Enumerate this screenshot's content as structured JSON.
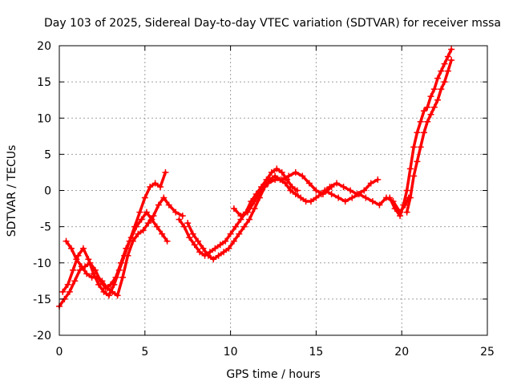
{
  "chart_data": {
    "type": "scatter",
    "title": "Day 103 of 2025, Sidereal Day-to-day VTEC variation (SDTVAR) for receiver mssa",
    "xlabel": "GPS time / hours",
    "ylabel": "SDTVAR / TECUs",
    "xlim": [
      0,
      25
    ],
    "ylim": [
      -20,
      20
    ],
    "xticks": [
      "0",
      "5",
      "10",
      "15",
      "20",
      "25"
    ],
    "yticks": [
      "-20",
      "-15",
      "-10",
      "-5",
      "0",
      "5",
      "10",
      "15",
      "20"
    ],
    "grid": true,
    "marker": "+",
    "color": "#ff0000",
    "series": [
      {
        "name": "trace-1",
        "x": [
          0.0,
          0.3,
          0.6,
          0.9,
          1.2,
          1.5,
          1.8,
          2.1,
          2.4,
          2.7,
          3.0,
          3.3,
          3.6,
          3.9,
          4.2,
          4.5,
          4.8,
          5.1,
          5.4,
          5.7,
          6.0,
          6.3
        ],
        "y": [
          -16,
          -15,
          -14,
          -12.5,
          -11,
          -10.5,
          -10,
          -11,
          -12.5,
          -13.5,
          -13,
          -12,
          -10,
          -8,
          -6.5,
          -5,
          -4,
          -3,
          -4,
          -5,
          -6,
          -7
        ]
      },
      {
        "name": "trace-2",
        "x": [
          0.2,
          0.5,
          0.8,
          1.1,
          1.4,
          1.7,
          2.0,
          2.3,
          2.6,
          2.9,
          3.2,
          3.5,
          3.8,
          4.1,
          4.4,
          4.7,
          5.0,
          5.3,
          5.6,
          5.9,
          6.2
        ],
        "y": [
          -14,
          -13,
          -11,
          -9,
          -8,
          -9.5,
          -11.5,
          -13,
          -14,
          -14.5,
          -13,
          -11,
          -9,
          -7,
          -5,
          -3,
          -1,
          0.5,
          1,
          0.5,
          2.5
        ]
      },
      {
        "name": "trace-3",
        "x": [
          0.4,
          0.7,
          1.0,
          1.3,
          1.6,
          1.9,
          2.2,
          2.5,
          2.8,
          3.1,
          3.4,
          3.7,
          4.0,
          4.3,
          4.6,
          4.9,
          5.2,
          5.5,
          5.8,
          6.1,
          6.4,
          6.8,
          7.2
        ],
        "y": [
          -7,
          -8,
          -9.5,
          -10.5,
          -11.5,
          -12,
          -12,
          -12.5,
          -13.5,
          -14,
          -14.5,
          -12,
          -9,
          -7,
          -6,
          -5.5,
          -4.5,
          -3.5,
          -2,
          -1,
          -2,
          -3,
          -3.5
        ]
      },
      {
        "name": "trace-4",
        "x": [
          7.0,
          7.3,
          7.6,
          7.9,
          8.2,
          8.5,
          8.8,
          9.1,
          9.4,
          9.7,
          10.0,
          10.3,
          10.6,
          10.9,
          11.2,
          11.5,
          11.8,
          12.1,
          12.4,
          12.7,
          13.0,
          13.3,
          13.6,
          13.9
        ],
        "y": [
          -4,
          -5,
          -6.5,
          -7.5,
          -8.5,
          -9,
          -8.5,
          -8,
          -7.5,
          -7,
          -6,
          -5,
          -4,
          -3,
          -1.5,
          -0.5,
          0.5,
          1.5,
          2.5,
          3,
          2.5,
          1.5,
          0.5,
          0
        ]
      },
      {
        "name": "trace-5",
        "x": [
          7.5,
          7.8,
          8.1,
          8.4,
          8.7,
          9.0,
          9.3,
          9.6,
          9.9,
          10.2,
          10.5,
          10.8,
          11.1,
          11.4,
          11.7,
          12.0,
          12.3,
          12.6,
          12.9,
          13.2,
          13.5,
          13.8,
          14.1,
          14.4,
          14.7,
          15.0,
          15.3,
          15.6,
          15.9
        ],
        "y": [
          -4.5,
          -6,
          -7,
          -8,
          -9,
          -9.5,
          -9,
          -8.5,
          -8,
          -7,
          -6,
          -5,
          -4,
          -2.5,
          -1,
          0.5,
          1.5,
          2,
          1.5,
          1,
          0,
          -0.5,
          -1,
          -1.5,
          -1.5,
          -1,
          -0.5,
          0,
          0.5
        ]
      },
      {
        "name": "trace-6",
        "x": [
          10.2,
          10.6,
          11.0,
          11.4,
          11.8,
          12.2,
          12.6,
          13.0,
          13.4,
          13.8,
          14.2,
          14.6,
          15.0,
          15.4,
          15.8,
          16.2,
          16.6,
          17.0,
          17.4,
          17.8,
          18.2,
          18.6
        ],
        "y": [
          -2.5,
          -3.5,
          -3,
          -1.5,
          0,
          1,
          1.5,
          1.5,
          2,
          2.5,
          2,
          1,
          0,
          -0.5,
          0.5,
          1,
          0.5,
          0,
          -0.5,
          0,
          1,
          1.5
        ]
      },
      {
        "name": "trace-7",
        "x": [
          15.5,
          15.9,
          16.3,
          16.7,
          17.1,
          17.5,
          17.9,
          18.3,
          18.7,
          19.1,
          19.5,
          19.9,
          20.2,
          20.4
        ],
        "y": [
          0,
          -0.5,
          -1,
          -1.5,
          -1,
          -0.5,
          -1,
          -1.5,
          -2,
          -1,
          -1.5,
          -3,
          -2,
          -1
        ]
      },
      {
        "name": "trace-8",
        "x": [
          19.3,
          19.6,
          19.9,
          20.1,
          20.3,
          20.5,
          20.7,
          20.9,
          21.1,
          21.3,
          21.5,
          21.7,
          21.9,
          22.1,
          22.3,
          22.5,
          22.7,
          22.9
        ],
        "y": [
          -1,
          -2.5,
          -3.5,
          -2,
          0,
          3,
          6,
          8,
          9.5,
          11,
          11.5,
          13,
          14,
          15.5,
          16.5,
          17.5,
          18.5,
          19.5
        ]
      },
      {
        "name": "trace-9",
        "x": [
          20.3,
          20.5,
          20.7,
          20.9,
          21.1,
          21.3,
          21.5,
          21.7,
          21.9,
          22.1,
          22.3,
          22.5,
          22.7,
          22.9
        ],
        "y": [
          -3,
          -1,
          2,
          4,
          6,
          8,
          9.5,
          10.5,
          11.5,
          12.5,
          14,
          15,
          16.5,
          18
        ]
      }
    ]
  }
}
